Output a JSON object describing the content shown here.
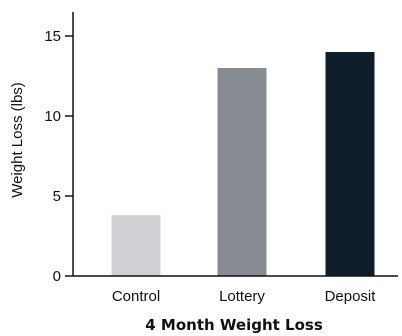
{
  "chart_data": {
    "type": "bar",
    "title": "4 Month Weight Loss",
    "xlabel": "",
    "ylabel": "Weight Loss (lbs)",
    "categories": [
      "Control",
      "Lottery",
      "Deposit"
    ],
    "values": [
      3.8,
      13,
      14
    ],
    "colors": [
      "#cfd0d4",
      "#878c92",
      "#101d2b"
    ],
    "ylim": [
      0,
      16.5
    ],
    "yticks": [
      0,
      5,
      10,
      15
    ],
    "ytick_labels": [
      "0",
      "5",
      "10",
      "15"
    ],
    "grid": false,
    "legend": "none"
  }
}
